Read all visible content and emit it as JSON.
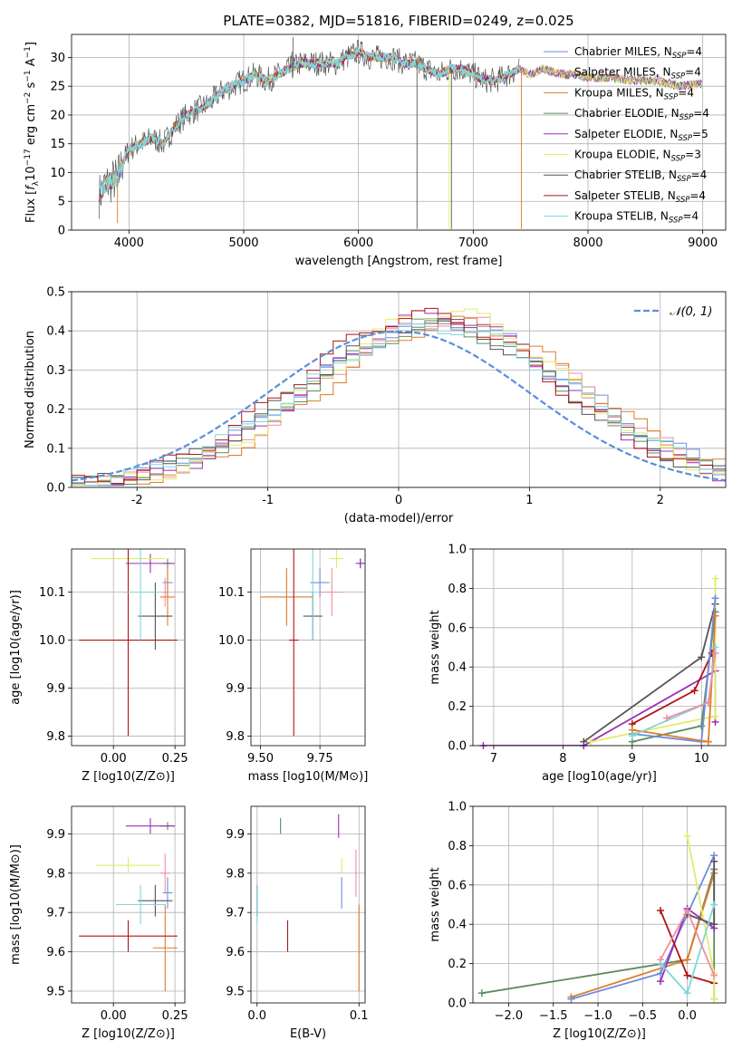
{
  "title": "PLATE=0382, MJD=51816, FIBERID=0249, z=0.025",
  "colors": {
    "Chabrier MILES": "#6c8ee0",
    "Salpeter MILES": "#f08ea0",
    "Kroupa MILES": "#e07b2a",
    "Chabrier ELODIE": "#5e8a5e",
    "Salpeter ELODIE": "#9a30b8",
    "Kroupa ELODIE": "#e2ec6a",
    "Chabrier STELIB": "#555555",
    "Salpeter STELIB": "#b01414",
    "Kroupa STELIB": "#7fd6dc",
    "gauss": "#5b8fd9"
  },
  "legend1": [
    {
      "label": "Chabrier MILES, N",
      "sub": "SSP",
      "tail": "=4",
      "key": "Chabrier MILES"
    },
    {
      "label": "Salpeter MILES, N",
      "sub": "SSP",
      "tail": "=4",
      "key": "Salpeter MILES"
    },
    {
      "label": "Kroupa MILES, N",
      "sub": "SSP",
      "tail": "=4",
      "key": "Kroupa MILES"
    },
    {
      "label": "Chabrier ELODIE, N",
      "sub": "SSP",
      "tail": "=4",
      "key": "Chabrier ELODIE"
    },
    {
      "label": "Salpeter ELODIE, N",
      "sub": "SSP",
      "tail": "=5",
      "key": "Salpeter ELODIE"
    },
    {
      "label": "Kroupa ELODIE, N",
      "sub": "SSP",
      "tail": "=3",
      "key": "Kroupa ELODIE"
    },
    {
      "label": "Chabrier STELIB, N",
      "sub": "SSP",
      "tail": "=4",
      "key": "Chabrier STELIB"
    },
    {
      "label": "Salpeter STELIB, N",
      "sub": "SSP",
      "tail": "=4",
      "key": "Salpeter STELIB"
    },
    {
      "label": "Kroupa STELIB, N",
      "sub": "SSP",
      "tail": "=4",
      "key": "Kroupa STELIB"
    }
  ],
  "legend2": {
    "label": "𝒩(0, 1)"
  },
  "chart_data": [
    {
      "id": "spectrum",
      "type": "line",
      "xlabel": "wavelength [Angstrom, rest frame]",
      "ylabel": "Flux [f_λ 10^-17 erg cm^-2 s^-1 A^-1]",
      "xlim": [
        3500,
        9200
      ],
      "ylim": [
        0,
        34
      ],
      "xticks": [
        4000,
        5000,
        6000,
        7000,
        8000,
        9000
      ],
      "yticks": [
        0,
        5,
        10,
        15,
        20,
        25,
        30
      ],
      "anchors": [
        [
          3740,
          6
        ],
        [
          3800,
          8
        ],
        [
          3850,
          8.5
        ],
        [
          3900,
          9
        ],
        [
          3950,
          12
        ],
        [
          4000,
          14
        ],
        [
          4100,
          15
        ],
        [
          4200,
          16
        ],
        [
          4300,
          15
        ],
        [
          4400,
          18
        ],
        [
          4500,
          20
        ],
        [
          4600,
          21
        ],
        [
          4700,
          22
        ],
        [
          4800,
          24
        ],
        [
          4900,
          25
        ],
        [
          5000,
          26
        ],
        [
          5100,
          27
        ],
        [
          5200,
          26
        ],
        [
          5300,
          27
        ],
        [
          5400,
          28
        ],
        [
          5500,
          29
        ],
        [
          5600,
          29
        ],
        [
          5700,
          29
        ],
        [
          5800,
          29
        ],
        [
          5900,
          30
        ],
        [
          6000,
          31
        ],
        [
          6100,
          30
        ],
        [
          6200,
          30
        ],
        [
          6300,
          30
        ],
        [
          6400,
          29
        ],
        [
          6500,
          29
        ],
        [
          6600,
          28
        ],
        [
          6700,
          27
        ],
        [
          6800,
          28
        ],
        [
          6900,
          28
        ],
        [
          7000,
          27
        ],
        [
          7100,
          26
        ],
        [
          7200,
          26
        ],
        [
          7300,
          27
        ],
        [
          7400,
          28
        ],
        [
          7500,
          27
        ],
        [
          7600,
          28
        ],
        [
          7700,
          27.5
        ],
        [
          7800,
          27
        ],
        [
          7900,
          27
        ],
        [
          8000,
          26.5
        ],
        [
          8200,
          26.5
        ],
        [
          8400,
          26
        ],
        [
          8600,
          26
        ],
        [
          8800,
          25
        ],
        [
          9000,
          25.5
        ]
      ]
    },
    {
      "id": "residuals",
      "type": "histogram",
      "xlabel": "(data-model)/error",
      "ylabel": "Normed distribution",
      "xlim": [
        -2.5,
        2.5
      ],
      "ylim": [
        0,
        0.5
      ],
      "xticks": [
        -2,
        -1,
        0,
        1,
        2
      ],
      "yticks": [
        0.0,
        0.1,
        0.2,
        0.3,
        0.4,
        0.5
      ],
      "gaussian": {
        "mean": 0,
        "sigma": 1
      },
      "bin_width": 0.1,
      "series": [
        {
          "key": "Chabrier MILES",
          "center": 0.35,
          "sigma": 1.05,
          "peak": 0.42
        },
        {
          "key": "Salpeter MILES",
          "center": 0.4,
          "sigma": 1.0,
          "peak": 0.43
        },
        {
          "key": "Kroupa MILES",
          "center": 0.45,
          "sigma": 1.0,
          "peak": 0.42
        },
        {
          "key": "Chabrier ELODIE",
          "center": 0.3,
          "sigma": 1.0,
          "peak": 0.41
        },
        {
          "key": "Salpeter ELODIE",
          "center": 0.3,
          "sigma": 0.95,
          "peak": 0.44
        },
        {
          "key": "Kroupa ELODIE",
          "center": 0.35,
          "sigma": 0.95,
          "peak": 0.45
        },
        {
          "key": "Chabrier STELIB",
          "center": 0.25,
          "sigma": 1.0,
          "peak": 0.42
        },
        {
          "key": "Salpeter STELIB",
          "center": 0.2,
          "sigma": 1.0,
          "peak": 0.44
        },
        {
          "key": "Kroupa STELIB",
          "center": 0.3,
          "sigma": 1.05,
          "peak": 0.41
        }
      ]
    },
    {
      "id": "z_age",
      "type": "errorbar",
      "xlabel": "Z [log10(Z/Z⊙)]",
      "ylabel": "age  [log10(age/yr)]",
      "xlim": [
        -0.17,
        0.29
      ],
      "ylim": [
        9.78,
        10.19
      ],
      "xticks": [
        0.0,
        0.25
      ],
      "yticks": [
        9.8,
        9.9,
        10.0,
        10.1
      ],
      "points": [
        {
          "key": "Chabrier MILES",
          "x": 0.22,
          "y": 10.12,
          "xerr": 0.02,
          "yerr": 0.03
        },
        {
          "key": "Salpeter MILES",
          "x": 0.21,
          "y": 10.1,
          "xerr": 0.01,
          "yerr": 0.03
        },
        {
          "key": "Kroupa MILES",
          "x": 0.22,
          "y": 10.09,
          "xerr": 0.03,
          "yerr": 0.06
        },
        {
          "key": "Chabrier ELODIE",
          "x": 0.22,
          "y": 10.16,
          "xerr": 0.02,
          "yerr": 0.01
        },
        {
          "key": "Salpeter ELODIE",
          "x": 0.15,
          "y": 10.16,
          "xerr": 0.1,
          "yerr": 0.02
        },
        {
          "key": "Kroupa ELODIE",
          "x": 0.06,
          "y": 10.17,
          "xerr": 0.15,
          "yerr": 0.02
        },
        {
          "key": "Chabrier STELIB",
          "x": 0.17,
          "y": 10.05,
          "xerr": 0.07,
          "yerr": 0.07
        },
        {
          "key": "Salpeter STELIB",
          "x": 0.06,
          "y": 10.0,
          "xerr": 0.2,
          "yerr": 0.2
        },
        {
          "key": "Kroupa STELIB",
          "x": 0.11,
          "y": 10.1,
          "xerr": 0.07,
          "yerr": 0.1
        }
      ]
    },
    {
      "id": "mass_age",
      "type": "errorbar",
      "xlabel": "mass [log10(M/M⊙)]",
      "ylabel": "",
      "xlim": [
        9.46,
        9.94
      ],
      "ylim": [
        9.78,
        10.19
      ],
      "xticks": [
        9.5,
        9.75
      ],
      "yticks": [
        9.8,
        9.9,
        10.0,
        10.1
      ],
      "points": [
        {
          "key": "Chabrier MILES",
          "x": 9.75,
          "y": 10.12,
          "xerr": 0.04,
          "yerr": 0.03
        },
        {
          "key": "Salpeter MILES",
          "x": 9.8,
          "y": 10.1,
          "xerr": 0.05,
          "yerr": 0.05
        },
        {
          "key": "Kroupa MILES",
          "x": 9.61,
          "y": 10.09,
          "xerr": 0.11,
          "yerr": 0.06
        },
        {
          "key": "Chabrier ELODIE",
          "x": 9.92,
          "y": 10.16,
          "xerr": 0.01,
          "yerr": 0.01
        },
        {
          "key": "Salpeter ELODIE",
          "x": 9.92,
          "y": 10.16,
          "xerr": 0.02,
          "yerr": 0.01
        },
        {
          "key": "Kroupa ELODIE",
          "x": 9.82,
          "y": 10.17,
          "xerr": 0.03,
          "yerr": 0.02
        },
        {
          "key": "Chabrier STELIB",
          "x": 9.72,
          "y": 10.05,
          "xerr": 0.04,
          "yerr": 0.05
        },
        {
          "key": "Salpeter STELIB",
          "x": 9.64,
          "y": 10.0,
          "xerr": 0.02,
          "yerr": 0.2
        },
        {
          "key": "Kroupa STELIB",
          "x": 9.72,
          "y": 10.1,
          "xerr": 0.01,
          "yerr": 0.1
        }
      ]
    },
    {
      "id": "age_weight",
      "type": "line",
      "xlabel": "age  [log10(age/yr)]",
      "ylabel": "mass weight",
      "xlim": [
        6.7,
        10.35
      ],
      "ylim": [
        0,
        1.0
      ],
      "xticks": [
        7,
        8,
        9,
        10
      ],
      "yticks": [
        0.0,
        0.2,
        0.4,
        0.6,
        0.8,
        1.0
      ],
      "series": [
        {
          "key": "Salpeter ELODIE",
          "x": [
            6.85,
            8.3,
            10.2,
            10.2
          ],
          "y": [
            0.0,
            0.0,
            0.38,
            0.12
          ]
        },
        {
          "key": "Chabrier STELIB",
          "x": [
            8.3,
            10.0,
            10.2
          ],
          "y": [
            0.02,
            0.45,
            0.72
          ]
        },
        {
          "key": "Kroupa ELODIE",
          "x": [
            8.4,
            10.2,
            10.2
          ],
          "y": [
            0.02,
            0.15,
            0.85
          ]
        },
        {
          "key": "Salpeter STELIB",
          "x": [
            9.0,
            9.9,
            10.15
          ],
          "y": [
            0.11,
            0.28,
            0.47
          ]
        },
        {
          "key": "Chabrier ELODIE",
          "x": [
            9.0,
            10.0,
            10.2
          ],
          "y": [
            0.02,
            0.1,
            0.68
          ]
        },
        {
          "key": "Chabrier MILES",
          "x": [
            9.0,
            10.0,
            10.2
          ],
          "y": [
            0.06,
            0.02,
            0.75
          ]
        },
        {
          "key": "Kroupa MILES",
          "x": [
            9.0,
            10.1,
            10.2
          ],
          "y": [
            0.08,
            0.02,
            0.66
          ]
        },
        {
          "key": "Kroupa STELIB",
          "x": [
            9.0,
            10.1,
            10.2
          ],
          "y": [
            0.05,
            0.22,
            0.5
          ]
        },
        {
          "key": "Salpeter MILES",
          "x": [
            9.5,
            10.1,
            10.2
          ],
          "y": [
            0.14,
            0.22,
            0.47
          ]
        }
      ]
    },
    {
      "id": "z_mass",
      "type": "errorbar",
      "xlabel": "Z [log10(Z/Z⊙)]",
      "ylabel": "mass [log10(M/M⊙)]",
      "xlim": [
        -0.17,
        0.29
      ],
      "ylim": [
        9.47,
        9.97
      ],
      "xticks": [
        0.0,
        0.25
      ],
      "yticks": [
        9.5,
        9.6,
        9.7,
        9.8,
        9.9
      ],
      "points": [
        {
          "key": "Chabrier MILES",
          "x": 0.22,
          "y": 9.75,
          "xerr": 0.02,
          "yerr": 0.04
        },
        {
          "key": "Salpeter MILES",
          "x": 0.21,
          "y": 9.8,
          "xerr": 0.02,
          "yerr": 0.05
        },
        {
          "key": "Kroupa MILES",
          "x": 0.21,
          "y": 9.61,
          "xerr": 0.05,
          "yerr": 0.11
        },
        {
          "key": "Chabrier ELODIE",
          "x": 0.22,
          "y": 9.92,
          "xerr": 0.03,
          "yerr": 0.01
        },
        {
          "key": "Salpeter ELODIE",
          "x": 0.15,
          "y": 9.92,
          "xerr": 0.1,
          "yerr": 0.02
        },
        {
          "key": "Kroupa ELODIE",
          "x": 0.06,
          "y": 9.82,
          "xerr": 0.13,
          "yerr": 0.02
        },
        {
          "key": "Chabrier STELIB",
          "x": 0.17,
          "y": 9.73,
          "xerr": 0.07,
          "yerr": 0.04
        },
        {
          "key": "Salpeter STELIB",
          "x": 0.06,
          "y": 9.64,
          "xerr": 0.2,
          "yerr": 0.04
        },
        {
          "key": "Kroupa STELIB",
          "x": 0.11,
          "y": 9.72,
          "xerr": 0.1,
          "yerr": 0.05
        }
      ]
    },
    {
      "id": "ebv_mass",
      "type": "errorbar",
      "xlabel": "E(B-V)",
      "ylabel": "",
      "xlim": [
        -0.006,
        0.106
      ],
      "ylim": [
        9.47,
        9.97
      ],
      "xticks": [
        0.0,
        0.1
      ],
      "yticks": [
        9.5,
        9.6,
        9.7,
        9.8,
        9.9
      ],
      "points": [
        {
          "key": "Chabrier MILES",
          "x": 0.083,
          "y": 9.75,
          "xerr": 0,
          "yerr": 0.04
        },
        {
          "key": "Salpeter MILES",
          "x": 0.097,
          "y": 9.8,
          "xerr": 0,
          "yerr": 0.06
        },
        {
          "key": "Kroupa MILES",
          "x": 0.1,
          "y": 9.61,
          "xerr": 0,
          "yerr": 0.11
        },
        {
          "key": "Chabrier ELODIE",
          "x": 0.023,
          "y": 9.92,
          "xerr": 0,
          "yerr": 0.02
        },
        {
          "key": "Salpeter ELODIE",
          "x": 0.08,
          "y": 9.92,
          "xerr": 0,
          "yerr": 0.03
        },
        {
          "key": "Kroupa ELODIE",
          "x": 0.083,
          "y": 9.82,
          "xerr": 0,
          "yerr": 0.02
        },
        {
          "key": "Chabrier STELIB",
          "x": 0.0,
          "y": 9.73,
          "xerr": 0,
          "yerr": 0.04
        },
        {
          "key": "Salpeter STELIB",
          "x": 0.03,
          "y": 9.64,
          "xerr": 0,
          "yerr": 0.04
        },
        {
          "key": "Kroupa STELIB",
          "x": 0.0,
          "y": 9.72,
          "xerr": 0,
          "yerr": 0.05
        }
      ]
    },
    {
      "id": "z_weight",
      "type": "line",
      "xlabel": "Z [log10(Z/Z⊙)]",
      "ylabel": "mass weight",
      "xlim": [
        -2.4,
        0.43
      ],
      "ylim": [
        0,
        1.0
      ],
      "xticks": [
        -2.0,
        -1.5,
        -1.0,
        -0.5,
        0.0
      ],
      "yticks": [
        0.0,
        0.2,
        0.4,
        0.6,
        0.8,
        1.0
      ],
      "series": [
        {
          "key": "Chabrier ELODIE",
          "x": [
            -2.3,
            0.0,
            0.3,
            0.3
          ],
          "y": [
            0.05,
            0.22,
            0.68,
            0.02
          ]
        },
        {
          "key": "Kroupa MILES",
          "x": [
            -1.3,
            0.0,
            0.3
          ],
          "y": [
            0.03,
            0.22,
            0.66
          ]
        },
        {
          "key": "Chabrier MILES",
          "x": [
            -1.3,
            -0.3,
            0.3
          ],
          "y": [
            0.02,
            0.15,
            0.75
          ]
        },
        {
          "key": "Salpeter ELODIE",
          "x": [
            -0.3,
            0.0,
            0.3
          ],
          "y": [
            0.11,
            0.48,
            0.38
          ]
        },
        {
          "key": "Salpeter STELIB",
          "x": [
            -0.3,
            0.0,
            0.3
          ],
          "y": [
            0.47,
            0.14,
            0.1
          ]
        },
        {
          "key": "Kroupa ELODIE",
          "x": [
            0.0,
            0.3,
            0.3
          ],
          "y": [
            0.85,
            0.15,
            0.02
          ]
        },
        {
          "key": "Chabrier STELIB",
          "x": [
            0.0,
            0.3,
            0.3
          ],
          "y": [
            0.45,
            0.4,
            0.72
          ]
        },
        {
          "key": "Kroupa STELIB",
          "x": [
            -0.3,
            0.0,
            0.3
          ],
          "y": [
            0.2,
            0.05,
            0.5
          ]
        },
        {
          "key": "Salpeter MILES",
          "x": [
            -0.3,
            0.0,
            0.3
          ],
          "y": [
            0.22,
            0.47,
            0.14
          ]
        }
      ]
    }
  ]
}
